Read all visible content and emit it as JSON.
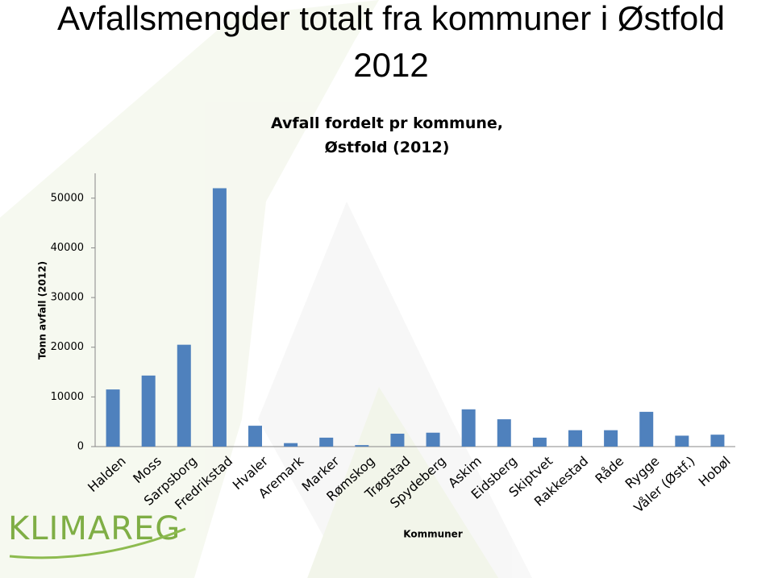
{
  "slide_title": "Avfallsmengder totalt fra kommuner i Østfold 2012",
  "logo": "KLIMAREG",
  "chart_data": {
    "type": "bar",
    "title": "Avfall fordelt pr kommune, Østfold (2012)",
    "x_label": "Kommuner",
    "y_label": "Tonn avfall (2012)",
    "categories": [
      "Halden",
      "Moss",
      "Sarpsborg",
      "Fredrikstad",
      "Hvaler",
      "Aremark",
      "Marker",
      "Rømskog",
      "Trøgstad",
      "Spydeberg",
      "Askim",
      "Eidsberg",
      "Skiptvet",
      "Rakkestad",
      "Råde",
      "Rygge",
      "Våler (Østf.)",
      "Hobøl"
    ],
    "values": [
      11500,
      14300,
      20500,
      52000,
      4200,
      700,
      1800,
      300,
      2600,
      2800,
      7500,
      5500,
      1800,
      3300,
      3300,
      7000,
      2200,
      2400
    ],
    "color": "#4f81bd",
    "ylim": [
      0,
      55000
    ],
    "yticks": [
      0,
      10000,
      20000,
      30000,
      40000,
      50000
    ],
    "grid": false
  }
}
